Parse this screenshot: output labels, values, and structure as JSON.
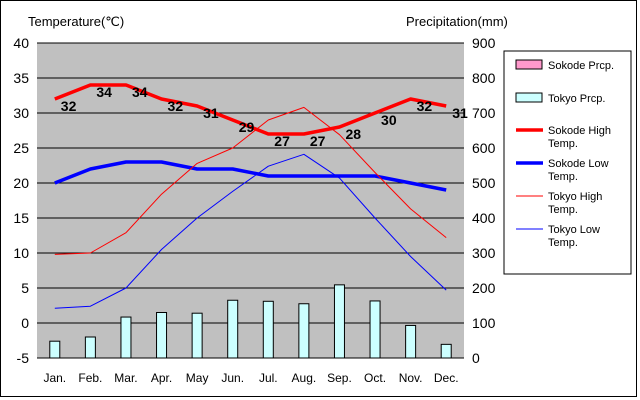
{
  "chart_data": {
    "type": "bar+line",
    "y_left_label": "Temperature(℃)",
    "y_right_label": "Precipitation(mm)",
    "y_left_range": [
      -5,
      40
    ],
    "y_left_ticks": [
      "-5",
      "0",
      "5",
      "10",
      "15",
      "20",
      "25",
      "30",
      "35",
      "40"
    ],
    "y_right_range": [
      0,
      900
    ],
    "y_right_ticks": [
      "0",
      "100",
      "200",
      "300",
      "400",
      "500",
      "600",
      "700",
      "800",
      "900"
    ],
    "categories": [
      "Jan.",
      "Feb.",
      "Mar.",
      "Apr.",
      "May",
      "Jun.",
      "Jul.",
      "Aug.",
      "Sep.",
      "Oct.",
      "Nov.",
      "Dec."
    ],
    "grid": true,
    "legend_position": "right",
    "colors": {
      "plot_bg": "#c0c0c0",
      "sokode_prcp": "#ff99cc",
      "tokyo_prcp": "#ccffff",
      "sokode_high": "#ff0000",
      "sokode_low": "#0000ff",
      "tokyo_high": "#ff0000",
      "tokyo_low": "#0000ff"
    },
    "bar_series": [
      {
        "name": "Sokode Prcp.",
        "values": [
          0,
          0,
          0,
          0,
          0,
          0,
          0,
          0,
          0,
          0,
          0,
          0
        ]
      },
      {
        "name": "Tokyo Prcp.",
        "values": [
          48,
          60,
          117,
          130,
          128,
          165,
          162,
          155,
          209,
          163,
          93,
          39
        ]
      }
    ],
    "line_series": [
      {
        "name": "Sokode High Temp.",
        "values": [
          32,
          34,
          34,
          32,
          31,
          29,
          27,
          27,
          28,
          30,
          32,
          31
        ],
        "labels": [
          "32",
          "34",
          "34",
          "32",
          "31",
          "29",
          "27",
          "27",
          "28",
          "30",
          "32",
          "31"
        ]
      },
      {
        "name": "Sokode Low Temp.",
        "values": [
          20,
          22,
          23,
          23,
          22,
          22,
          21,
          21,
          21,
          21,
          20,
          19
        ]
      },
      {
        "name": "Tokyo High Temp.",
        "values": [
          9.8,
          10.0,
          12.9,
          18.4,
          22.8,
          25.0,
          29.0,
          30.8,
          26.9,
          21.5,
          16.3,
          12.2
        ]
      },
      {
        "name": "Tokyo Low Temp.",
        "values": [
          2.1,
          2.4,
          5.0,
          10.5,
          15.0,
          18.8,
          22.4,
          24.1,
          20.7,
          15.0,
          9.5,
          4.7
        ]
      }
    ]
  }
}
